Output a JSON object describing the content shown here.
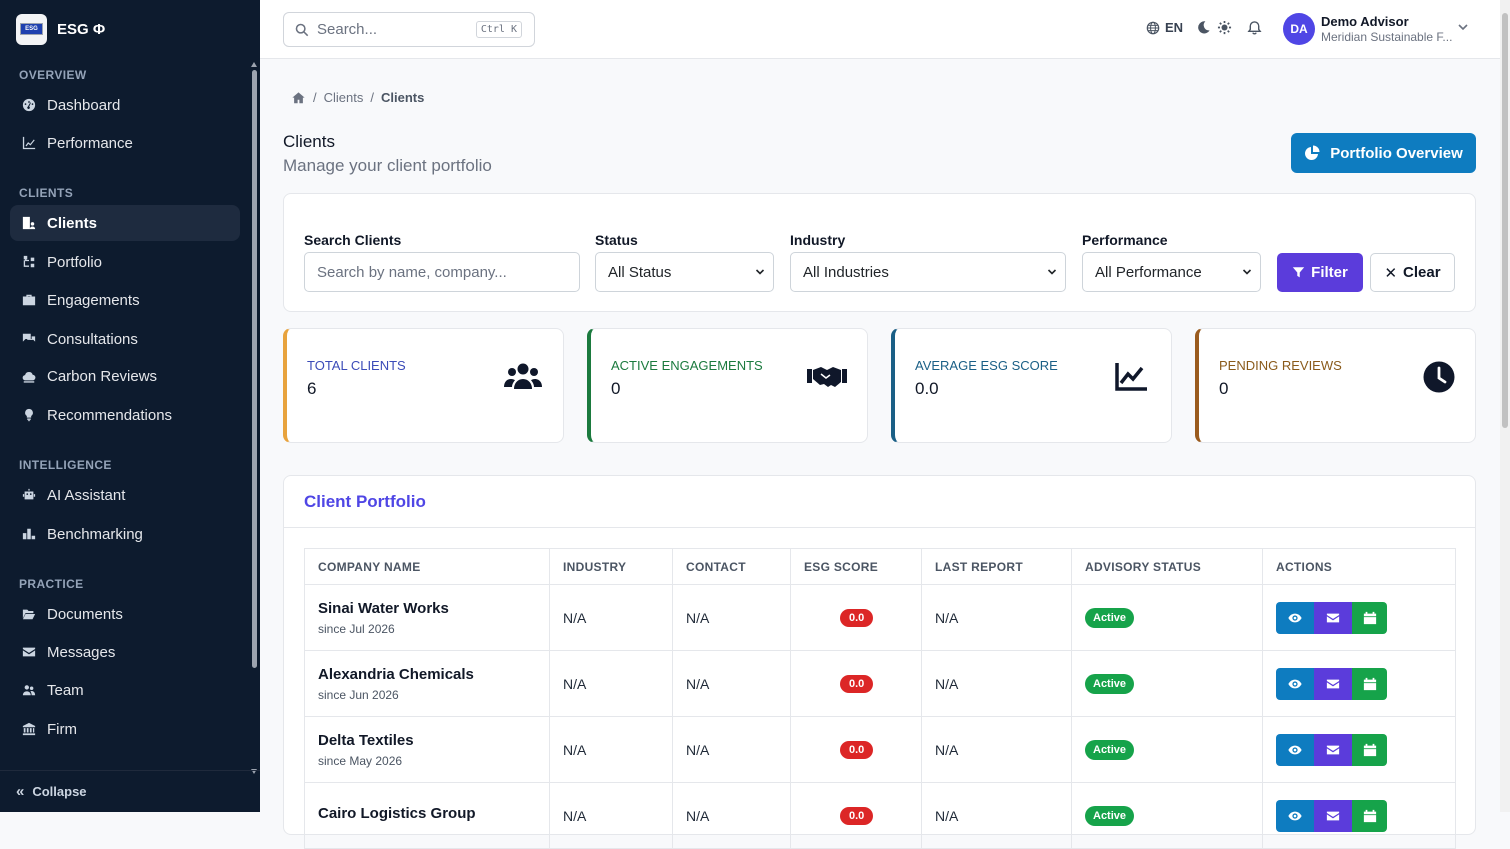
{
  "app": {
    "brand": "ESG Φ",
    "logo_text": "ESG"
  },
  "sidebar": {
    "sections": [
      {
        "label": "OVERVIEW"
      },
      {
        "label": "CLIENTS"
      },
      {
        "label": "INTELLIGENCE"
      },
      {
        "label": "PRACTICE"
      }
    ],
    "items": [
      {
        "label": "Dashboard",
        "icon": "gauge-icon"
      },
      {
        "label": "Performance",
        "icon": "chart-line-icon"
      },
      {
        "label": "Clients",
        "icon": "building-user-icon",
        "active": true
      },
      {
        "label": "Portfolio",
        "icon": "sitemap-icon"
      },
      {
        "label": "Engagements",
        "icon": "briefcase-icon"
      },
      {
        "label": "Consultations",
        "icon": "comments-icon"
      },
      {
        "label": "Carbon Reviews",
        "icon": "cloud-icon"
      },
      {
        "label": "Recommendations",
        "icon": "lightbulb-icon"
      },
      {
        "label": "AI Assistant",
        "icon": "robot-icon"
      },
      {
        "label": "Benchmarking",
        "icon": "ranking-icon"
      },
      {
        "label": "Documents",
        "icon": "folder-open-icon"
      },
      {
        "label": "Messages",
        "icon": "envelope-icon"
      },
      {
        "label": "Team",
        "icon": "users-icon"
      },
      {
        "label": "Firm",
        "icon": "landmark-icon"
      }
    ],
    "collapse_label": "Collapse"
  },
  "topbar": {
    "search_placeholder": "Search...",
    "search_shortcut": "Ctrl K",
    "language": "EN",
    "user": {
      "initials": "DA",
      "name": "Demo Advisor",
      "org": "Meridian Sustainable F..."
    }
  },
  "breadcrumb": {
    "parent": "Clients",
    "current": "Clients"
  },
  "page": {
    "title": "Clients",
    "subtitle": "Manage your client portfolio",
    "portfolio_button": "Portfolio Overview"
  },
  "filters": {
    "search_label": "Search Clients",
    "search_placeholder": "Search by name, company...",
    "status_label": "Status",
    "status_value": "All Status",
    "industry_label": "Industry",
    "industry_value": "All Industries",
    "performance_label": "Performance",
    "performance_value": "All Performance",
    "filter_button": "Filter",
    "clear_button": "Clear"
  },
  "stats": [
    {
      "label": "TOTAL CLIENTS",
      "value": "6",
      "icon": "users-icon",
      "color": "#e8a33d",
      "label_color": "#3b4bb8"
    },
    {
      "label": "ACTIVE ENGAGEMENTS",
      "value": "0",
      "icon": "handshake-icon",
      "color": "#1b7a3e",
      "label_color": "#1b7a3e"
    },
    {
      "label": "AVERAGE ESG SCORE",
      "value": "0.0",
      "icon": "chart-line-icon",
      "color": "#1a5f86",
      "label_color": "#1a5f86"
    },
    {
      "label": "PENDING REVIEWS",
      "value": "0",
      "icon": "clock-icon",
      "color": "#9a5b1e",
      "label_color": "#8a5a1a"
    }
  ],
  "table": {
    "title": "Client Portfolio",
    "columns": [
      "COMPANY NAME",
      "INDUSTRY",
      "CONTACT",
      "ESG SCORE",
      "LAST REPORT",
      "ADVISORY STATUS",
      "ACTIONS"
    ],
    "rows": [
      {
        "company": "Sinai Water Works",
        "since": "since Jul 2026",
        "industry": "N/A",
        "contact": "N/A",
        "score": "0.0",
        "last_report": "N/A",
        "status": "Active"
      },
      {
        "company": "Alexandria Chemicals",
        "since": "since Jun 2026",
        "industry": "N/A",
        "contact": "N/A",
        "score": "0.0",
        "last_report": "N/A",
        "status": "Active"
      },
      {
        "company": "Delta Textiles",
        "since": "since May 2026",
        "industry": "N/A",
        "contact": "N/A",
        "score": "0.0",
        "last_report": "N/A",
        "status": "Active"
      },
      {
        "company": "Cairo Logistics Group",
        "since": "",
        "industry": "N/A",
        "contact": "N/A",
        "score": "0.0",
        "last_report": "N/A",
        "status": "Active"
      }
    ]
  }
}
